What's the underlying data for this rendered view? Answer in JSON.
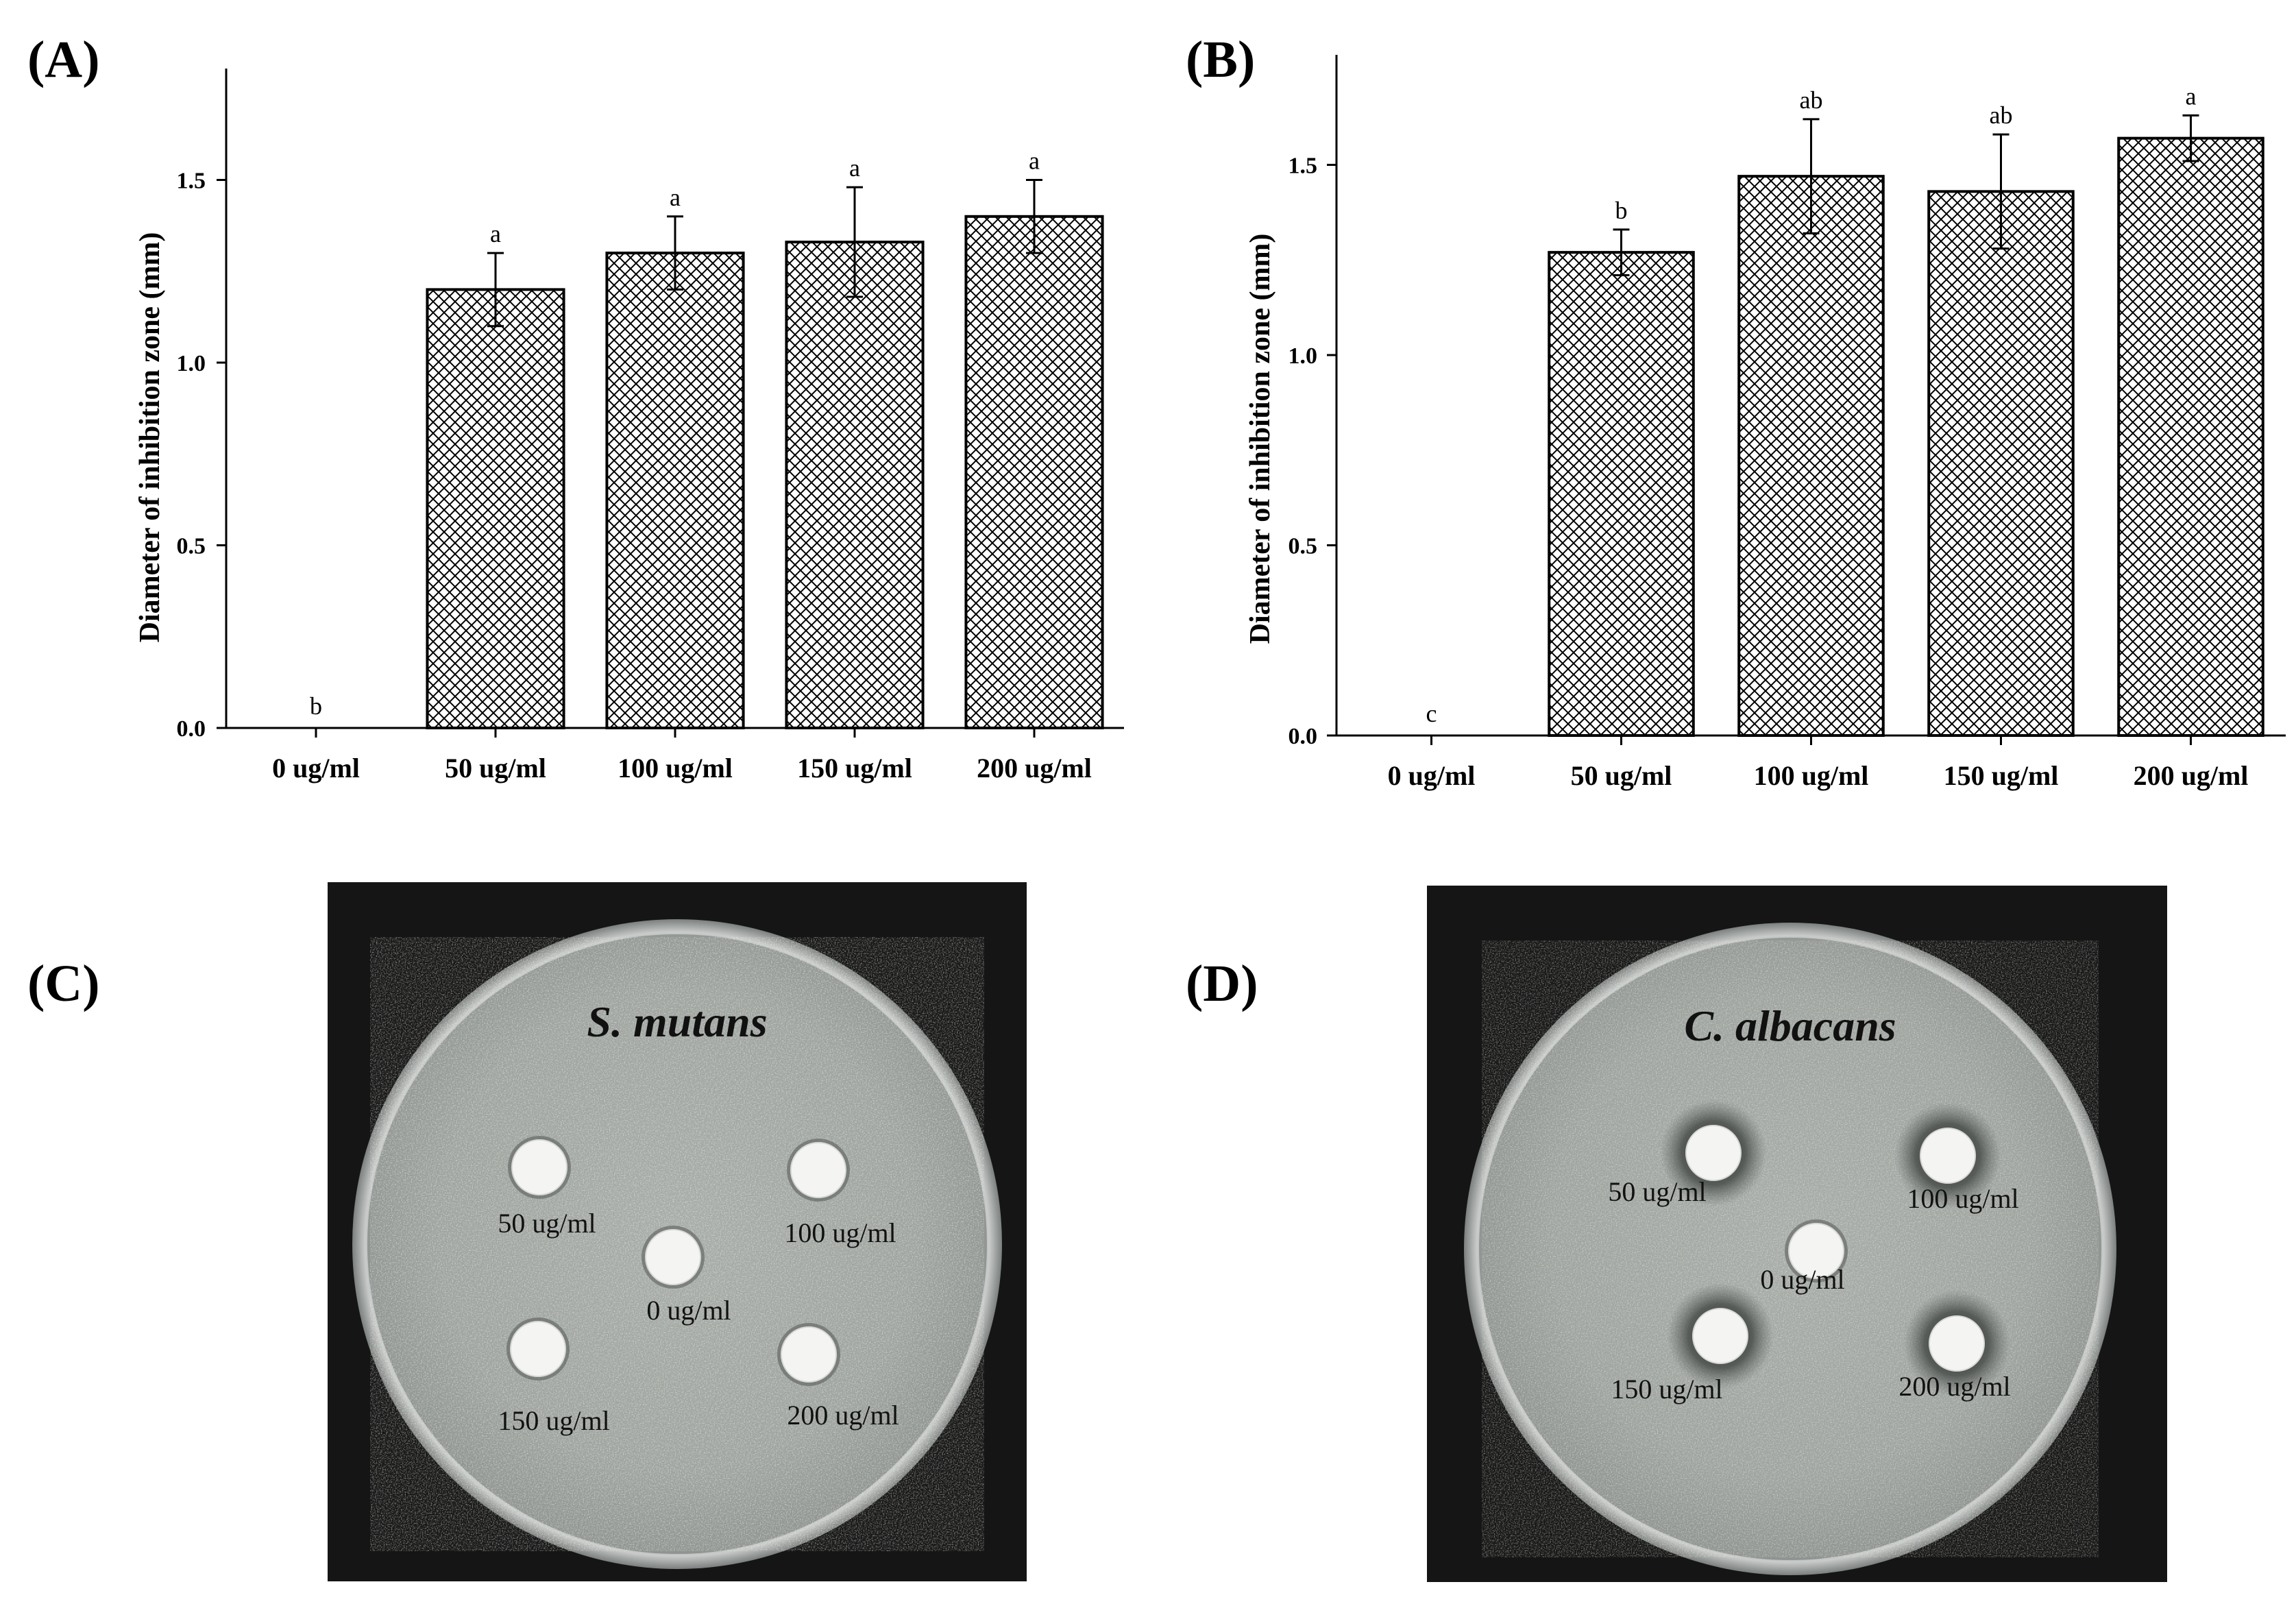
{
  "chart_data": [
    {
      "panel": "(A)",
      "type": "bar",
      "ylabel": "Diameter of inhibition zone (mm)",
      "xlabel": "",
      "categories": [
        "0 ug/ml",
        "50 ug/ml",
        "100 ug/ml",
        "150 ug/ml",
        "200 ug/ml"
      ],
      "values": [
        0,
        1.2,
        1.3,
        1.33,
        1.4
      ],
      "errors": [
        0,
        0.1,
        0.1,
        0.15,
        0.1
      ],
      "significance": [
        "b",
        "a",
        "a",
        "a",
        "a"
      ],
      "yticks": [
        "0.0",
        "0.5",
        "1.0",
        "1.5"
      ],
      "ylim": [
        0,
        1.8
      ],
      "fill_pattern": "crosshatch"
    },
    {
      "panel": "(B)",
      "type": "bar",
      "ylabel": "Diameter of inhibition zone (mm)",
      "xlabel": "",
      "categories": [
        "0 ug/ml",
        "50 ug/ml",
        "100 ug/ml",
        "150 ug/ml",
        "200 ug/ml"
      ],
      "values": [
        0,
        1.27,
        1.47,
        1.43,
        1.57
      ],
      "errors": [
        0,
        0.06,
        0.15,
        0.15,
        0.06
      ],
      "significance": [
        "c",
        "b",
        "ab",
        "ab",
        "a"
      ],
      "yticks": [
        "0.0",
        "0.5",
        "1.0",
        "1.5"
      ],
      "ylim": [
        0,
        1.8
      ],
      "fill_pattern": "crosshatch"
    }
  ],
  "photos": [
    {
      "panel": "(C)",
      "organism": "S. mutans",
      "discs": [
        "50 ug/ml",
        "100 ug/ml",
        "0 ug/ml",
        "150 ug/ml",
        "200 ug/ml"
      ]
    },
    {
      "panel": "(D)",
      "organism": "C. albacans",
      "discs": [
        "50 ug/ml",
        "100 ug/ml",
        "0 ug/ml",
        "150 ug/ml",
        "200 ug/ml"
      ]
    }
  ],
  "colors": {
    "bar_stroke": "#000000",
    "hatch": "#000000",
    "photo_background": "#151515",
    "agar": "#a9aea9",
    "disc": "#f4f4f2"
  }
}
